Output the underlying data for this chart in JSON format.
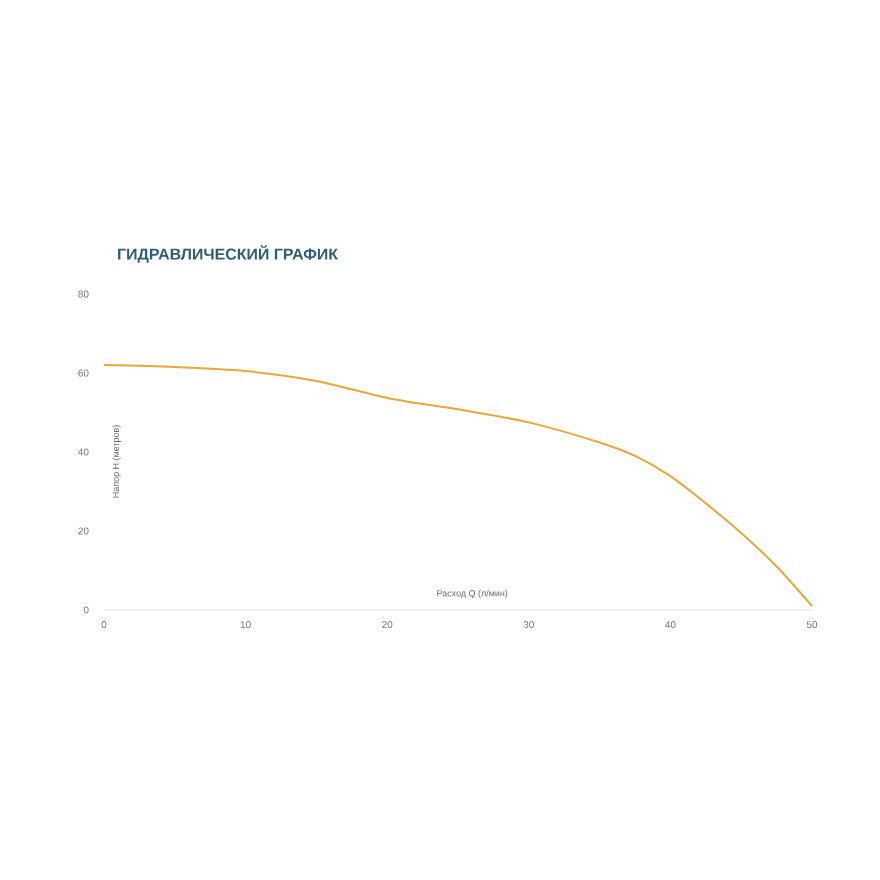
{
  "chart_data": {
    "type": "line",
    "title": "ГИДРАВЛИЧЕСКИЙ ГРАФИК",
    "xlabel": "Расход Q (л/мин)",
    "ylabel": "Напор H (метров)",
    "x": [
      0,
      5,
      10,
      15,
      20,
      25,
      30,
      35,
      37.5,
      40,
      42.5,
      45,
      47.5,
      50
    ],
    "series": [
      {
        "color": "#e8a83a",
        "values": [
          62,
          61.5,
          60.5,
          58,
          53.7,
          50.8,
          47.5,
          42.4,
          39,
          33.9,
          27,
          19.5,
          11,
          1
        ]
      }
    ],
    "xlim": [
      0,
      50
    ],
    "ylim": [
      0,
      80
    ],
    "xticks": [
      0,
      10,
      20,
      30,
      40,
      50
    ],
    "yticks": [
      0,
      20,
      40,
      60,
      80
    ],
    "grid": false,
    "marker": "none",
    "line_style": "solid"
  }
}
